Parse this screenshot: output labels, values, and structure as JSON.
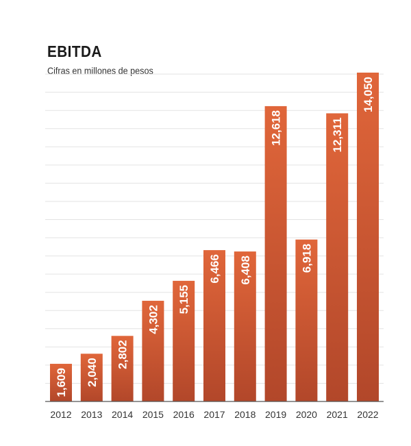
{
  "chart_data": {
    "type": "bar",
    "title": "EBITDA",
    "subtitle": "Cifras en millones de pesos",
    "categories": [
      "2012",
      "2013",
      "2014",
      "2015",
      "2016",
      "2017",
      "2018",
      "2019",
      "2020",
      "2021",
      "2022"
    ],
    "values": [
      1609,
      2040,
      2802,
      4302,
      5155,
      6466,
      6408,
      12618,
      6918,
      12311,
      14050
    ],
    "value_labels": [
      "1,609",
      "2,040",
      "2,802",
      "4,302",
      "5,155",
      "6,466",
      "6,408",
      "12,618",
      "6,918",
      "12,311",
      "14,050"
    ],
    "ylim": [
      0,
      14050
    ],
    "grid": true,
    "bar_color_top": "#e0663a",
    "bar_color_bottom": "#b2472a"
  }
}
